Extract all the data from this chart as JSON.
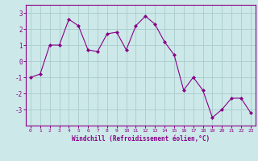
{
  "x": [
    0,
    1,
    2,
    3,
    4,
    5,
    6,
    7,
    8,
    9,
    10,
    11,
    12,
    13,
    14,
    15,
    16,
    17,
    18,
    19,
    20,
    21,
    22,
    23
  ],
  "y": [
    -1,
    -0.8,
    1.0,
    1.0,
    2.6,
    2.2,
    0.7,
    0.6,
    1.7,
    1.8,
    0.7,
    2.2,
    2.8,
    2.3,
    1.2,
    0.4,
    -1.8,
    -1.0,
    -1.8,
    -3.5,
    -3.0,
    -2.3,
    -2.3,
    -3.2
  ],
  "line_color": "#880088",
  "marker": "D",
  "marker_size": 2.0,
  "bg_color": "#cce8e8",
  "grid_color": "#aacccc",
  "xlabel": "Windchill (Refroidissement éolien,°C)",
  "xlim": [
    -0.5,
    23.5
  ],
  "ylim": [
    -4.0,
    3.5
  ],
  "yticks": [
    -3,
    -2,
    -1,
    0,
    1,
    2,
    3
  ],
  "xticks": [
    0,
    1,
    2,
    3,
    4,
    5,
    6,
    7,
    8,
    9,
    10,
    11,
    12,
    13,
    14,
    15,
    16,
    17,
    18,
    19,
    20,
    21,
    22,
    23
  ],
  "tick_color": "#880088",
  "spine_color": "#880088",
  "label_color": "#880088",
  "figsize": [
    3.2,
    2.0
  ],
  "dpi": 100
}
